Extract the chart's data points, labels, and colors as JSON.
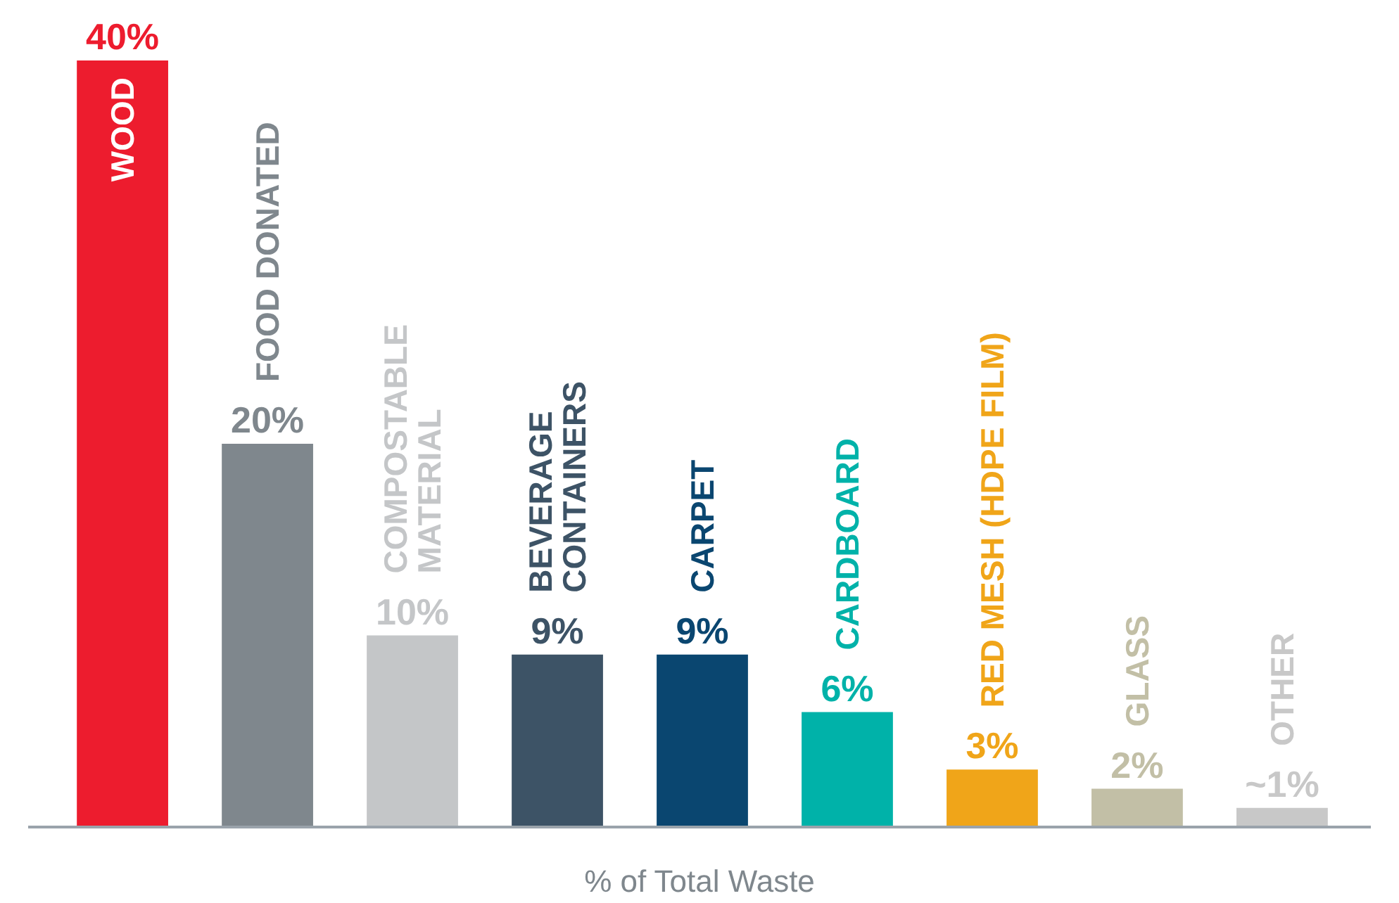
{
  "chart_data": {
    "type": "bar",
    "xlabel": "% of Total Waste",
    "categories": [
      "WOOD",
      "FOOD DONATED",
      "COMPOSTABLE\nMATERIAL",
      "BEVERAGE\nCONTAINERS",
      "CARPET",
      "CARDBOARD",
      "RED MESH (HDPE FILM)",
      "GLASS",
      "OTHER"
    ],
    "values": [
      40,
      20,
      10,
      9,
      9,
      6,
      3,
      2,
      1
    ],
    "value_labels": [
      "40%",
      "20%",
      "10%",
      "9%",
      "9%",
      "6%",
      "3%",
      "2%",
      "~1%"
    ],
    "colors": [
      "#ed1c2e",
      "#7f878d",
      "#c4c6c8",
      "#3d5366",
      "#0a4670",
      "#00b2a9",
      "#f0a519",
      "#c2bfa6",
      "#c8c8c8"
    ]
  }
}
